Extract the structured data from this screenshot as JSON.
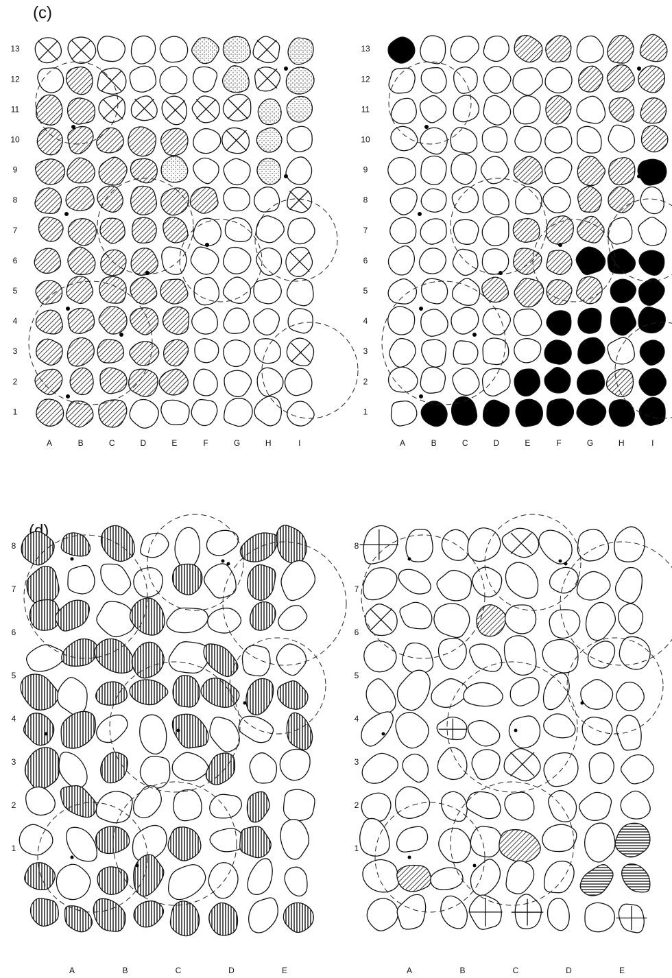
{
  "panel_c": {
    "label": "(c)",
    "rows": [
      "13",
      "12",
      "11",
      "10",
      "9",
      "8",
      "7",
      "6",
      "5",
      "4",
      "3",
      "2",
      "1"
    ],
    "columns": [
      "A",
      "B",
      "C",
      "D",
      "E",
      "F",
      "G",
      "H",
      "I"
    ]
  },
  "panel_d": {
    "label": "(d)",
    "rows": [
      "8",
      "7",
      "6",
      "5",
      "4",
      "3",
      "2",
      "1"
    ],
    "columns": [
      "A",
      "B",
      "C",
      "D",
      "E"
    ]
  }
}
